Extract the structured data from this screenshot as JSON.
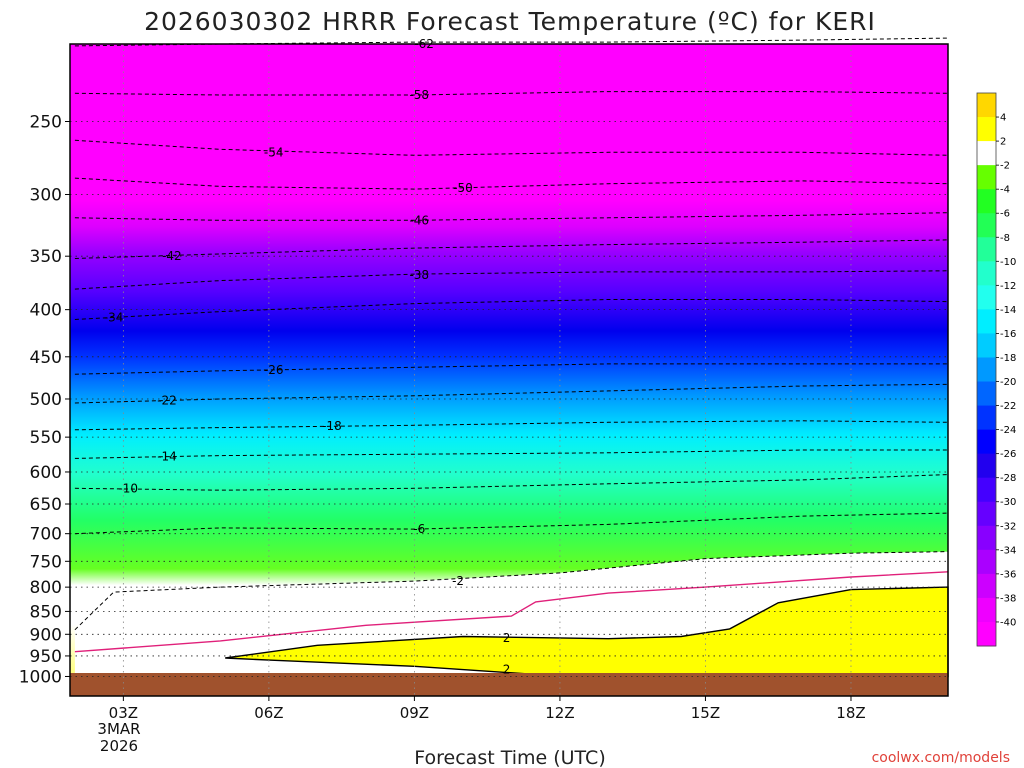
{
  "chart_data": {
    "type": "contour",
    "title": "2026030302 HRRR Forecast Temperature (ºC) for KERI",
    "xlabel": "Forecast Time (UTC)",
    "ylabel": "",
    "y_scale": "log",
    "ylim": [
      1050,
      200
    ],
    "xlim": [
      1.9,
      20.0
    ],
    "x_ticks": [
      {
        "value": 3,
        "label": "03Z"
      },
      {
        "value": 6,
        "label": "06Z"
      },
      {
        "value": 9,
        "label": "09Z"
      },
      {
        "value": 12,
        "label": "12Z"
      },
      {
        "value": 15,
        "label": "15Z"
      },
      {
        "value": 18,
        "label": "18Z"
      }
    ],
    "date_label": [
      "3MAR",
      "2026"
    ],
    "y_ticks": [
      {
        "value": 250,
        "label": "250"
      },
      {
        "value": 300,
        "label": "300"
      },
      {
        "value": 350,
        "label": "350"
      },
      {
        "value": 400,
        "label": "400"
      },
      {
        "value": 450,
        "label": "450"
      },
      {
        "value": 500,
        "label": "500"
      },
      {
        "value": 550,
        "label": "550"
      },
      {
        "value": 600,
        "label": "600"
      },
      {
        "value": 650,
        "label": "650"
      },
      {
        "value": 700,
        "label": "700"
      },
      {
        "value": 750,
        "label": "750"
      },
      {
        "value": 800,
        "label": "800"
      },
      {
        "value": 850,
        "label": "850"
      },
      {
        "value": 900,
        "label": "900"
      },
      {
        "value": 950,
        "label": "950"
      },
      {
        "value": 1000,
        "label": "1000"
      }
    ],
    "grid": "dotted",
    "ground_color": "#a0522d",
    "isotherms": [
      {
        "value": -62,
        "label": "-62",
        "points": [
          [
            2.0,
            207
          ],
          [
            5,
            206
          ],
          [
            9,
            205
          ],
          [
            13,
            205
          ],
          [
            17,
            204
          ],
          [
            20,
            203
          ]
        ],
        "label_at": [
          9.2,
          206
        ]
      },
      {
        "value": -58,
        "label": "-58",
        "points": [
          [
            2.0,
            233
          ],
          [
            5,
            234
          ],
          [
            9,
            234
          ],
          [
            13,
            232
          ],
          [
            17,
            232
          ],
          [
            20,
            233
          ]
        ],
        "label_at": [
          9.1,
          234
        ]
      },
      {
        "value": -54,
        "label": "-54",
        "points": [
          [
            2.0,
            262
          ],
          [
            5,
            268
          ],
          [
            9,
            272
          ],
          [
            13,
            270
          ],
          [
            17,
            270
          ],
          [
            20,
            272
          ]
        ],
        "label_at": [
          6.1,
          270
        ]
      },
      {
        "value": -50,
        "label": "-50",
        "points": [
          [
            2.0,
            288
          ],
          [
            5,
            294
          ],
          [
            9,
            296
          ],
          [
            13,
            292
          ],
          [
            17,
            290
          ],
          [
            20,
            292
          ]
        ],
        "label_at": [
          10.0,
          295
        ]
      },
      {
        "value": -46,
        "label": "-46",
        "points": [
          [
            2.0,
            318
          ],
          [
            5,
            320
          ],
          [
            9,
            320
          ],
          [
            13,
            318
          ],
          [
            17,
            316
          ],
          [
            20,
            314
          ]
        ],
        "label_at": [
          9.1,
          320
        ]
      },
      {
        "value": -42,
        "label": "-42",
        "points": [
          [
            2.0,
            352
          ],
          [
            5,
            348
          ],
          [
            9,
            343
          ],
          [
            13,
            340
          ],
          [
            17,
            338
          ],
          [
            20,
            336
          ]
        ],
        "label_at": [
          4.0,
          350
        ]
      },
      {
        "value": -38,
        "label": "-38",
        "points": [
          [
            2.0,
            380
          ],
          [
            5,
            372
          ],
          [
            9,
            366
          ],
          [
            13,
            364
          ],
          [
            17,
            364
          ],
          [
            20,
            363
          ]
        ],
        "label_at": [
          9.1,
          367
        ]
      },
      {
        "value": -34,
        "label": "-34",
        "points": [
          [
            2.0,
            410
          ],
          [
            5,
            402
          ],
          [
            9,
            394
          ],
          [
            13,
            390
          ],
          [
            17,
            390
          ],
          [
            20,
            392
          ]
        ],
        "label_at": [
          2.8,
          408
        ]
      },
      {
        "value": -26,
        "label": "-26",
        "points": [
          [
            2.0,
            470
          ],
          [
            5,
            466
          ],
          [
            9,
            462
          ],
          [
            13,
            458
          ],
          [
            17,
            458
          ],
          [
            20,
            458
          ]
        ],
        "label_at": [
          6.1,
          465
        ]
      },
      {
        "value": -22,
        "label": "-22",
        "points": [
          [
            2.0,
            505
          ],
          [
            5,
            500
          ],
          [
            9,
            496
          ],
          [
            13,
            490
          ],
          [
            17,
            484
          ],
          [
            20,
            482
          ]
        ],
        "label_at": [
          3.9,
          502
        ]
      },
      {
        "value": -18,
        "label": "-18",
        "points": [
          [
            2.0,
            540
          ],
          [
            5,
            537
          ],
          [
            9,
            534
          ],
          [
            13,
            530
          ],
          [
            17,
            528
          ],
          [
            20,
            530
          ]
        ],
        "label_at": [
          7.3,
          535
        ]
      },
      {
        "value": -14,
        "label": "-14",
        "points": [
          [
            2.0,
            580
          ],
          [
            5,
            576
          ],
          [
            9,
            574
          ],
          [
            13,
            572
          ],
          [
            17,
            568
          ],
          [
            20,
            568
          ]
        ],
        "label_at": [
          3.9,
          577
        ]
      },
      {
        "value": -10,
        "label": "-10",
        "points": [
          [
            2.0,
            625
          ],
          [
            5,
            628
          ],
          [
            9,
            625
          ],
          [
            13,
            618
          ],
          [
            17,
            612
          ],
          [
            20,
            604
          ]
        ],
        "label_at": [
          3.1,
          625
        ]
      },
      {
        "value": -6,
        "label": "-6",
        "points": [
          [
            2.0,
            700
          ],
          [
            5,
            690
          ],
          [
            9,
            692
          ],
          [
            13,
            684
          ],
          [
            17,
            670
          ],
          [
            20,
            665
          ]
        ],
        "label_at": [
          9.1,
          692
        ]
      },
      {
        "value": -2,
        "label": "-2",
        "points": [
          [
            2.0,
            890
          ],
          [
            2.8,
            810
          ],
          [
            5,
            800
          ],
          [
            9,
            788
          ],
          [
            12,
            772
          ],
          [
            15,
            745
          ],
          [
            18,
            735
          ],
          [
            20,
            732
          ]
        ],
        "label_at": [
          9.9,
          788
        ]
      }
    ],
    "zero_line_points": [
      [
        2.0,
        940
      ],
      [
        5,
        915
      ],
      [
        8,
        880
      ],
      [
        11,
        860
      ],
      [
        11.5,
        830
      ],
      [
        13,
        812
      ],
      [
        15,
        800
      ],
      [
        18,
        780
      ],
      [
        20,
        770
      ]
    ],
    "warm_contour_points": [
      [
        5.1,
        955
      ],
      [
        7,
        925
      ],
      [
        10,
        905
      ],
      [
        13,
        910
      ],
      [
        14.5,
        905
      ],
      [
        15.5,
        888
      ],
      [
        16.5,
        832
      ],
      [
        18,
        805
      ],
      [
        20,
        800
      ],
      [
        20,
        1000
      ],
      [
        11.5,
        995
      ],
      [
        9,
        975
      ],
      [
        6,
        960
      ],
      [
        5.1,
        955
      ]
    ],
    "warm_labels": [
      {
        "label": "2",
        "at": [
          10.9,
          908
        ]
      },
      {
        "label": "2",
        "at": [
          10.9,
          983
        ]
      }
    ],
    "colorbar": {
      "labels": [
        "4",
        "2",
        "-2",
        "-4",
        "-6",
        "-8",
        "-10",
        "-12",
        "-14",
        "-16",
        "-18",
        "-20",
        "-22",
        "-24",
        "-26",
        "-28",
        "-30",
        "-32",
        "-34",
        "-36",
        "-38",
        "-40"
      ],
      "colors": [
        "#ffd700",
        "#ffff00",
        "#ffffff",
        "#66ff00",
        "#22ff22",
        "#22ff55",
        "#22ff99",
        "#22ffcc",
        "#22ffee",
        "#00eeff",
        "#00ccff",
        "#0099ff",
        "#0066ff",
        "#0033ff",
        "#0000ff",
        "#2200ee",
        "#4400ff",
        "#6600ff",
        "#8800ff",
        "#aa00ff",
        "#cc00ff",
        "#ee00ff",
        "#ff00ff"
      ]
    }
  },
  "footer": {
    "credit": "coolwx.com/models"
  }
}
